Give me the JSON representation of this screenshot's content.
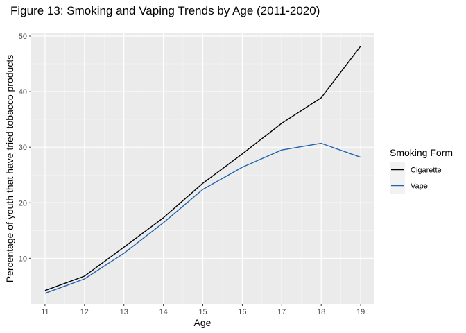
{
  "chart_data": {
    "type": "line",
    "title": "Figure 13: Smoking and Vaping Trends by Age (2011-2020)",
    "xlabel": "Age",
    "ylabel": "Percentage of youth that have tried tobacco products",
    "x": [
      11,
      12,
      13,
      14,
      15,
      16,
      17,
      18,
      19
    ],
    "xlim": [
      10.65,
      19.35
    ],
    "ylim": [
      1.8,
      50.5
    ],
    "x_ticks": [
      11,
      12,
      13,
      14,
      15,
      16,
      17,
      18,
      19
    ],
    "y_ticks": [
      10,
      20,
      30,
      40,
      50
    ],
    "grid": true,
    "legend": {
      "title": "Smoking Form",
      "position": "right"
    },
    "series": [
      {
        "name": "Cigarette",
        "color": "#000000",
        "values": [
          4.2,
          6.8,
          12.0,
          17.3,
          23.5,
          28.8,
          34.3,
          38.9,
          48.2
        ]
      },
      {
        "name": "Vape",
        "color": "#1f63b0",
        "values": [
          3.7,
          6.3,
          10.9,
          16.4,
          22.4,
          26.4,
          29.5,
          30.7,
          28.2
        ]
      }
    ]
  }
}
